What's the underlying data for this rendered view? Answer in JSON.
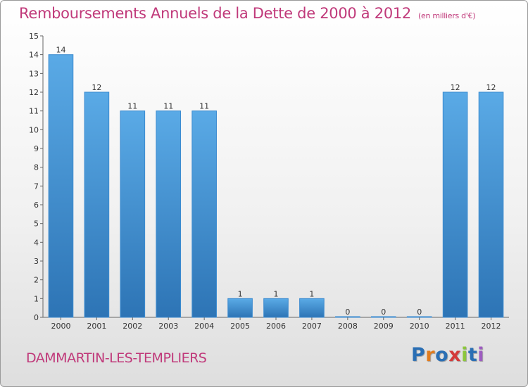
{
  "header": {
    "title": "Remboursements Annuels de la Dette de 2000 à 2012",
    "unit": "(en milliers d'€)"
  },
  "footer": {
    "commune": "DAMMARTIN-LES-TEMPLIERS",
    "logo_text": "Proxiti",
    "logo_colors": [
      "#2b6fb4",
      "#e07c1f",
      "#2b6fb4",
      "#d43a3a",
      "#8cc63e",
      "#2b6fb4",
      "#9d5cc0"
    ]
  },
  "colors": {
    "accent": "#c0397a",
    "bar_top": "#5aaae6",
    "bar_bottom": "#2d74b5"
  },
  "chart_data": {
    "type": "bar",
    "title": "Remboursements Annuels de la Dette de 2000 à 2012",
    "subtitle": "(en milliers d'€)",
    "xlabel": "",
    "ylabel": "",
    "categories": [
      "2000",
      "2001",
      "2002",
      "2003",
      "2004",
      "2005",
      "2006",
      "2007",
      "2008",
      "2009",
      "2010",
      "2011",
      "2012"
    ],
    "values": [
      14,
      12,
      11,
      11,
      11,
      1,
      1,
      1,
      0,
      0,
      0,
      12,
      12
    ],
    "value_labels": [
      "14",
      "12",
      "11",
      "11",
      "11",
      "1",
      "1",
      "1",
      "0",
      "0",
      "0",
      "12",
      "12"
    ],
    "yticks": [
      "0",
      "1",
      "2",
      "3",
      "4",
      "5",
      "6",
      "7",
      "8",
      "9",
      "10",
      "11",
      "12",
      "13",
      "14",
      "15"
    ],
    "ylim": [
      0,
      15
    ],
    "grid": false,
    "legend": "none"
  }
}
